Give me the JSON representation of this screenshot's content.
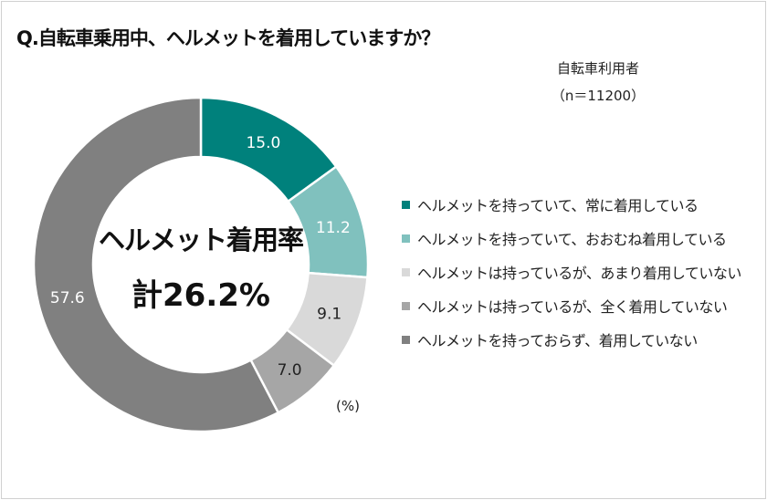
{
  "title": "Q.自転車乗用中、ヘルメットを着用していますか？",
  "respondents": "自転車利用者",
  "sample_size": "（n＝11200）",
  "center_label_line1": "ヘルメット着用率",
  "center_label_line2": "計26.2%",
  "unit_label": "(%)",
  "chart_data": {
    "type": "pie",
    "donut": true,
    "start": "top, clockwise",
    "unit": "%",
    "legend_position": "right",
    "categories": [
      "ヘルメットを持っていて、常に着用している",
      "ヘルメットを持っていて、おおむね着用している",
      "ヘルメットは持っているが、あまり着用していない",
      "ヘルメットは持っているが、全く着用していない",
      "ヘルメットを持っておらず、着用していない"
    ],
    "values": [
      15.0,
      11.2,
      9.1,
      7.0,
      57.6
    ],
    "labels": [
      "15.0",
      "11.2",
      "9.1",
      "7.0",
      "57.6"
    ],
    "colors": [
      "#00817c",
      "#80c1be",
      "#d9d9d9",
      "#a6a6a6",
      "#808080"
    ],
    "label_colors": [
      "#ffffff",
      "#ffffff",
      "#222222",
      "#222222",
      "#ffffff"
    ]
  }
}
